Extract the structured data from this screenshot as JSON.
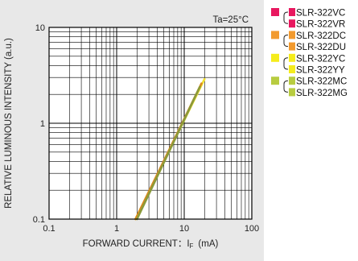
{
  "chart_data": {
    "type": "line",
    "annotation": "Ta=25°C",
    "xlabel_main": "FORWARD CURRENT：I",
    "xlabel_sub": "F",
    "xlabel_unit": "(mA)",
    "ylabel": "RELATIVE LUMINOUS INTENSITY (a.u.)",
    "xscale": "log",
    "yscale": "log",
    "xlim": [
      0.1,
      100
    ],
    "ylim": [
      0.1,
      10
    ],
    "x_tick_labels": [
      "0.1",
      "1",
      "10",
      "100"
    ],
    "y_tick_labels": [
      "0.1",
      "1",
      "10"
    ],
    "grid": true,
    "series": [
      {
        "color": "#f0e030",
        "x": [
          1.9,
          20
        ],
        "y": [
          0.1,
          2.9
        ]
      },
      {
        "color": "#d98a20",
        "x": [
          1.9,
          18
        ],
        "y": [
          0.1,
          2.6
        ]
      },
      {
        "color": "#8a9a3a",
        "x": [
          2.0,
          17
        ],
        "y": [
          0.1,
          2.4
        ]
      }
    ],
    "legend": [
      {
        "color": "#e8185f",
        "labels": [
          "SLR-322VC",
          "SLR-322VR"
        ]
      },
      {
        "color": "#f29a2e",
        "labels": [
          "SLR-322DC",
          "SLR-322DU"
        ]
      },
      {
        "color": "#f5ec1c",
        "labels": [
          "SLR-322YC",
          "SLR-322YY"
        ]
      },
      {
        "color": "#b8cc40",
        "labels": [
          "SLR-322MC",
          "SLR-322MG"
        ]
      }
    ]
  }
}
